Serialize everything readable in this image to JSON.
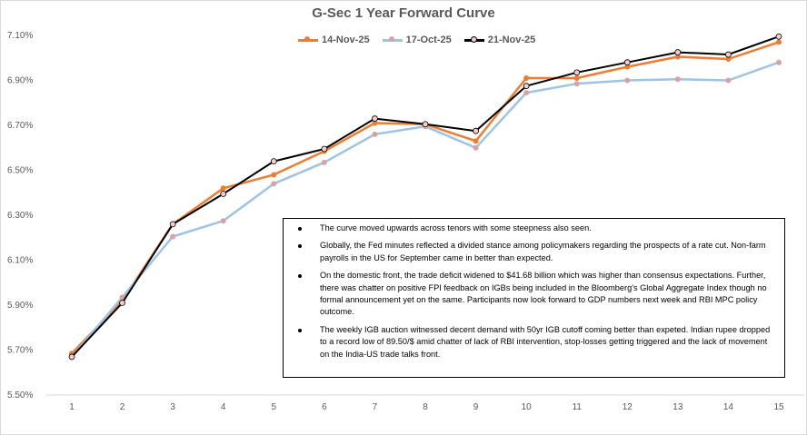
{
  "chart_data": {
    "type": "line",
    "title": "G-Sec 1 Year Forward Curve",
    "xlabel": "",
    "ylabel": "",
    "x": [
      1,
      2,
      3,
      4,
      5,
      6,
      7,
      8,
      9,
      10,
      11,
      12,
      13,
      14,
      15
    ],
    "y_ticks": [
      "5.50%",
      "5.70%",
      "5.90%",
      "6.10%",
      "6.30%",
      "6.50%",
      "6.70%",
      "6.90%",
      "7.10%"
    ],
    "ylim": [
      5.5,
      7.1
    ],
    "grid": false,
    "legend_position": "top",
    "series": [
      {
        "name": "14-Nov-25",
        "color": "#ED7D31",
        "marker_fill": "#ED7D31",
        "values": [
          5.685,
          5.92,
          6.26,
          6.42,
          6.48,
          6.585,
          6.71,
          6.705,
          6.63,
          6.91,
          6.91,
          6.96,
          7.005,
          6.995,
          7.07
        ]
      },
      {
        "name": "17-Oct-25",
        "color": "#9DC3E6",
        "marker_fill": "#D9A3A3",
        "values": [
          5.67,
          5.935,
          6.205,
          6.275,
          6.44,
          6.535,
          6.66,
          6.695,
          6.6,
          6.845,
          6.885,
          6.9,
          6.905,
          6.9,
          6.98
        ]
      },
      {
        "name": "21-Nov-25",
        "color": "#000000",
        "marker_fill": "#F4CCCC",
        "values": [
          5.67,
          5.91,
          6.26,
          6.395,
          6.54,
          6.595,
          6.73,
          6.705,
          6.675,
          6.875,
          6.935,
          6.98,
          7.025,
          7.015,
          7.095
        ]
      }
    ]
  },
  "notes": [
    "The curve moved upwards across tenors with some steepness also seen.",
    "Globally, the Fed minutes reflected a divided stance among policymakers regarding the prospects of a rate cut. Non-farm payrolls in the US for September came in better than expected.",
    "On the domestic front, the trade deficit widened to $41.68 billion which was higher than consensus expectations. Further, there was chatter on positive FPI feedback on IGBs being included in the Bloomberg's Global Aggregate Index though no formal announcement yet on the same. Participants now look forward to GDP numbers next week and RBI MPC policy outcome.",
    "The weekly IGB auction witnessed decent demand with 50yr IGB cutoff coming better than expeted. Indian rupee dropped to a record low of 89.50/$ amid chatter of lack of RBI intervention, stop-losses getting triggered and the lack of movement on the India-US trade talks front."
  ]
}
